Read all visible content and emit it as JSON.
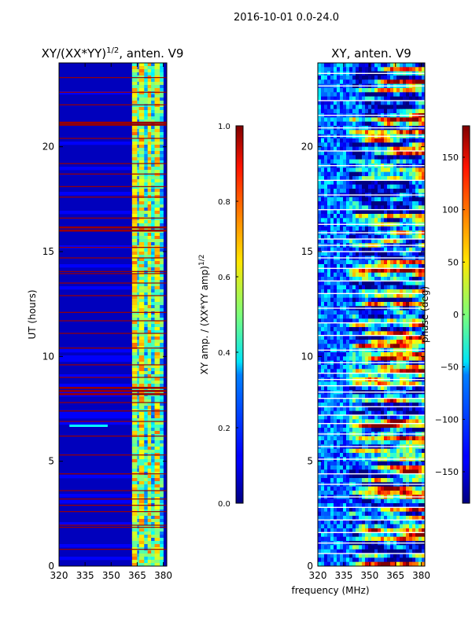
{
  "suptitle": "2016-10-01 0.0-24.0",
  "chart_data": [
    {
      "type": "heatmap",
      "title": "XY/(XX*YY)",
      "title_exponent": "1/2",
      "title_suffix": ", anten. V9",
      "xlabel": "",
      "ylabel": "UT (hours)",
      "xlim": [
        320,
        382
      ],
      "ylim": [
        0,
        24
      ],
      "xticks": [
        320,
        335,
        350,
        365,
        380
      ],
      "yticks": [
        0,
        5,
        10,
        15,
        20
      ],
      "colorbar": {
        "label": "XY amp. / (XX*YY amp)",
        "label_exponent": "1/2",
        "range": [
          0.0,
          1.0
        ],
        "ticks": [
          "0.0",
          "0.2",
          "0.4",
          "0.6",
          "0.8",
          "1.0"
        ],
        "colormap": "jet"
      },
      "description": "low amplitude (~0.05) below 362 MHz; bright columns (0.4-0.9) at 362-380 MHz; horizontal red flagged rows at ~21.1, 16.1, 14.0, 8.4, 1.9, 0.8 hours"
    },
    {
      "type": "heatmap",
      "title": "XY, anten. V9",
      "xlabel": "frequency (MHz)",
      "ylabel": "",
      "xlim": [
        320,
        382
      ],
      "ylim": [
        0,
        24
      ],
      "xticks": [
        320,
        335,
        350,
        365,
        380
      ],
      "yticks": [
        0,
        5,
        10,
        15,
        20
      ],
      "colorbar": {
        "label": "phase (deg)",
        "range": [
          -180,
          180
        ],
        "ticks": [
          "150",
          "100",
          "50",
          "0",
          "−50",
          "−100",
          "−150"
        ],
        "colormap": "jet"
      },
      "description": "noisy phase map spanning -180 to 180 deg with many horizontal flagged stripes"
    }
  ],
  "colors": {
    "jet_low": "#00007f",
    "jet_mid": "#7fff7f",
    "jet_high": "#7f0000",
    "flag_red": "#9b0000",
    "axis": "#000000"
  }
}
